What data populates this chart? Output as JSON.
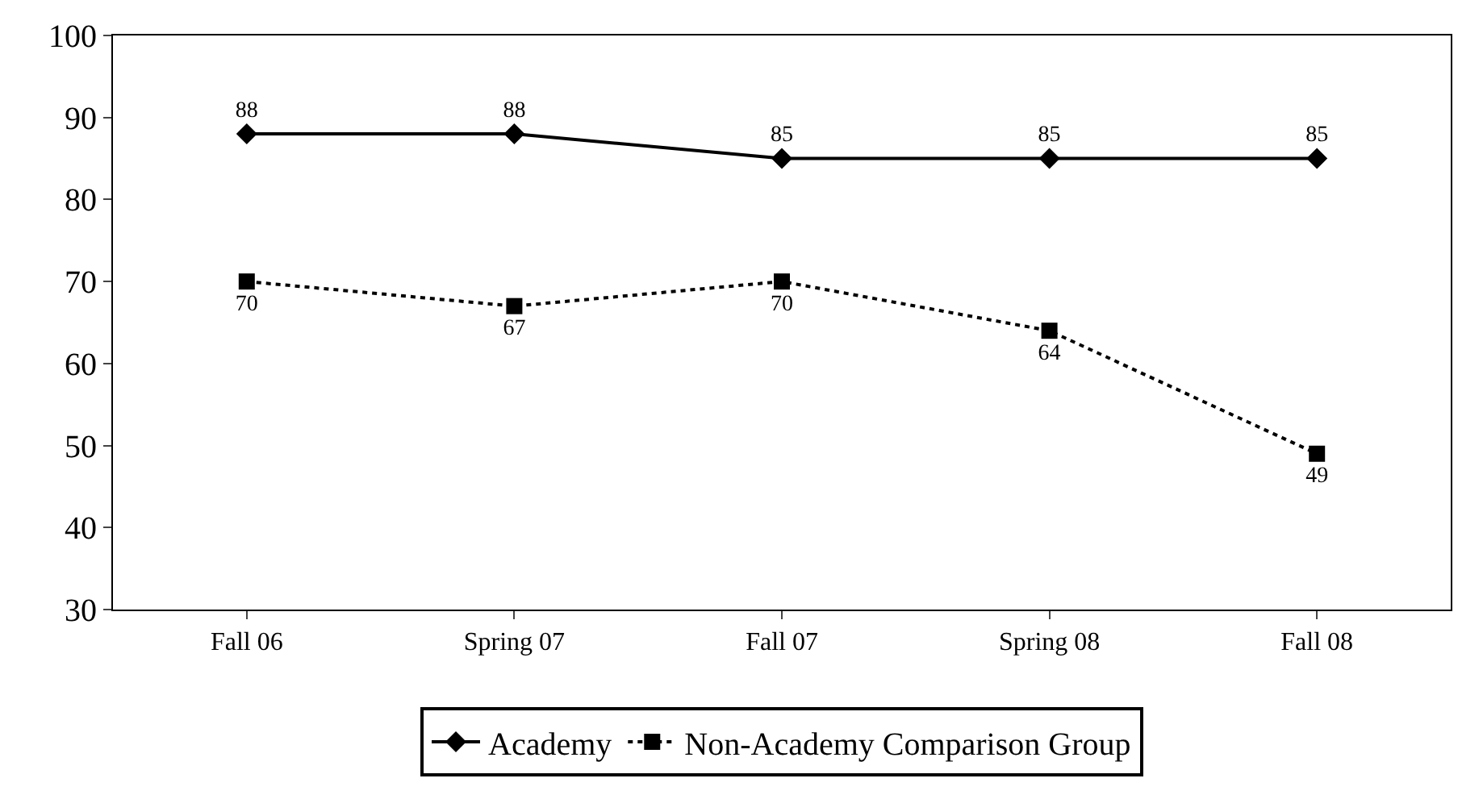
{
  "chart_data": {
    "type": "line",
    "categories": [
      "Fall 06",
      "Spring 07",
      "Fall 07",
      "Spring 08",
      "Fall 08"
    ],
    "series": [
      {
        "name": "Academy",
        "color": "#000000",
        "values": [
          88,
          88,
          85,
          85,
          85
        ],
        "marker": "diamond",
        "line_style": "solid"
      },
      {
        "name": "Non-Academy Comparison Group",
        "color": "#000000",
        "values": [
          70,
          67,
          70,
          64,
          49
        ],
        "marker": "square",
        "line_style": "dotted"
      }
    ],
    "ylim": [
      30,
      100
    ],
    "yticks": [
      30,
      40,
      50,
      60,
      70,
      80,
      90,
      100
    ],
    "grid": false,
    "legend": "bottom",
    "data_labels": true
  }
}
